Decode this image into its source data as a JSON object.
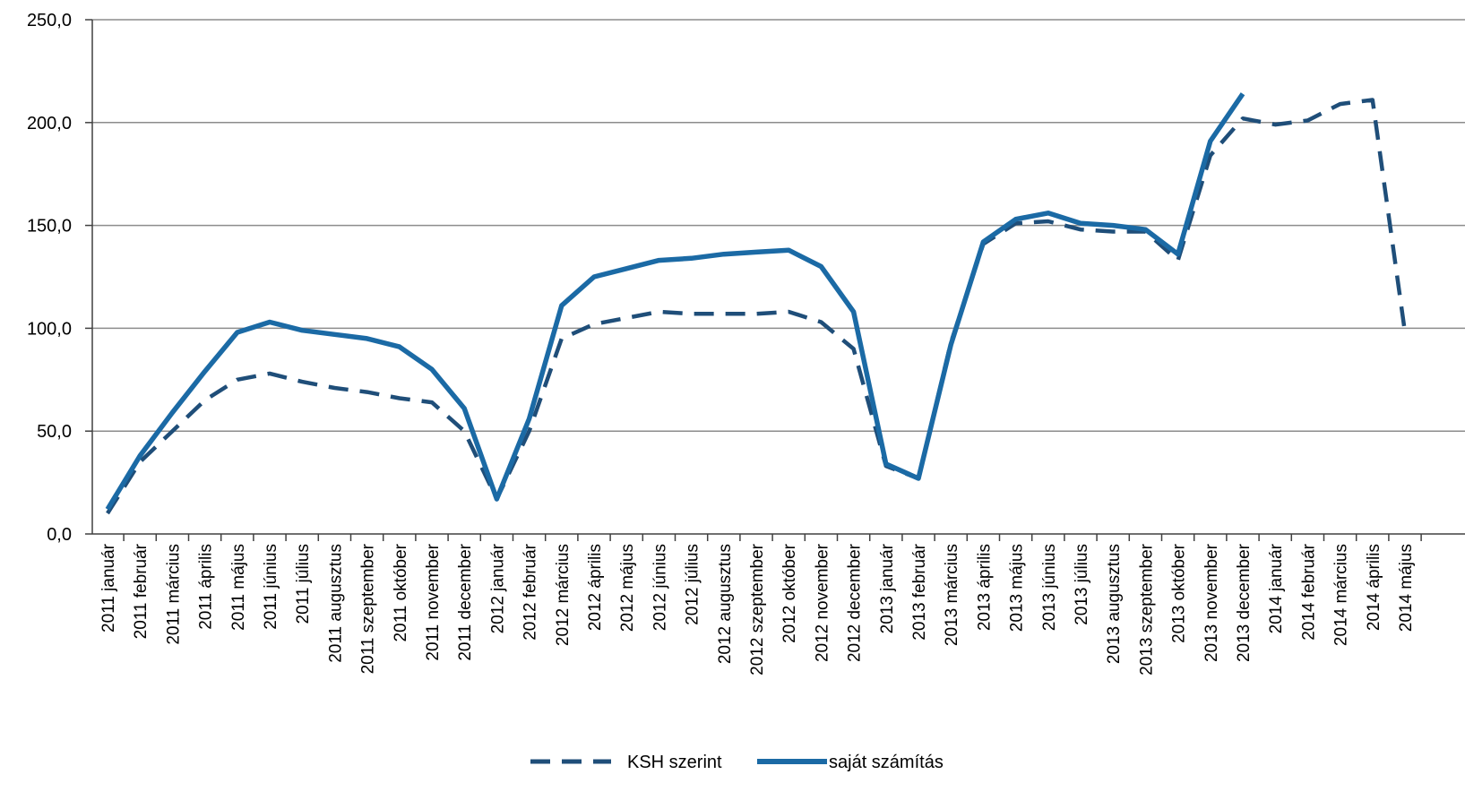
{
  "chart_data": {
    "type": "line",
    "title": "",
    "xlabel": "",
    "ylabel": "",
    "ylim": [
      0,
      250
    ],
    "yticks": [
      "0,0",
      "50,0",
      "100,0",
      "150,0",
      "200,0",
      "250,0"
    ],
    "grid": true,
    "legend_position": "bottom",
    "categories": [
      "2011 január",
      "2011 február",
      "2011 március",
      "2011 április",
      "2011 május",
      "2011 június",
      "2011 július",
      "2011 augusztus",
      "2011 szeptember",
      "2011 október",
      "2011 november",
      "2011 december",
      "2012 január",
      "2012 február",
      "2012 március",
      "2012 április",
      "2012 május",
      "2012 június",
      "2012 július",
      "2012 augusztus",
      "2012 szeptember",
      "2012 október",
      "2012 november",
      "2012 december",
      "2013 január",
      "2013 február",
      "2013 március",
      "2013 április",
      "2013 május",
      "2013 június",
      "2013 július",
      "2013 augusztus",
      "2013 szeptember",
      "2013 október",
      "2013 november",
      "2013 december",
      "2014 január",
      "2014 február",
      "2014 március",
      "2014 április",
      "2014 május"
    ],
    "series": [
      {
        "name": "KSH szerint",
        "color": "#1f4e79",
        "style": "dashed",
        "values": [
          10,
          35,
          50,
          65,
          75,
          78,
          74,
          71,
          69,
          66,
          64,
          50,
          17,
          50,
          95,
          102,
          105,
          108,
          107,
          107,
          107,
          108,
          103,
          90,
          33,
          27,
          93,
          141,
          151,
          152,
          148,
          147,
          147,
          133,
          184,
          202,
          199,
          201,
          209,
          211,
          98
        ]
      },
      {
        "name": "saját számítás",
        "color": "#1b6aa5",
        "style": "solid",
        "values": [
          12,
          38,
          59,
          79,
          98,
          103,
          99,
          97,
          95,
          91,
          80,
          61,
          17,
          56,
          111,
          125,
          129,
          133,
          134,
          136,
          137,
          138,
          130,
          108,
          34,
          27,
          92,
          142,
          153,
          156,
          151,
          150,
          148,
          136,
          191,
          214,
          null,
          null,
          null,
          null,
          null
        ]
      }
    ]
  }
}
